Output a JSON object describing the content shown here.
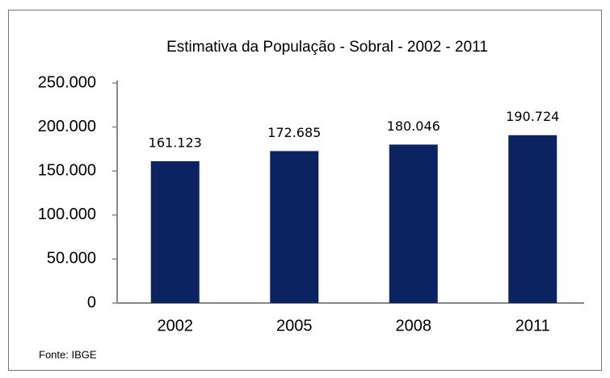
{
  "chart_data": {
    "type": "bar",
    "title": "Estimativa da População -  Sobral -   2002 - 2011",
    "categories": [
      "2002",
      "2005",
      "2008",
      "2011"
    ],
    "values": [
      161123,
      172685,
      180046,
      190724
    ],
    "value_labels": [
      "161.123",
      "172.685",
      "180.046",
      "190.724"
    ],
    "color": "#0b2461",
    "ylim": [
      0,
      250000
    ],
    "yticks": [
      {
        "value": 0,
        "label": "0"
      },
      {
        "value": 50000,
        "label": "50.000"
      },
      {
        "value": 100000,
        "label": "100.000"
      },
      {
        "value": 150000,
        "label": "150.000"
      },
      {
        "value": 200000,
        "label": "200.000"
      },
      {
        "value": 250000,
        "label": "250.000"
      }
    ],
    "grid": false,
    "source": "Fonte: IBGE"
  }
}
